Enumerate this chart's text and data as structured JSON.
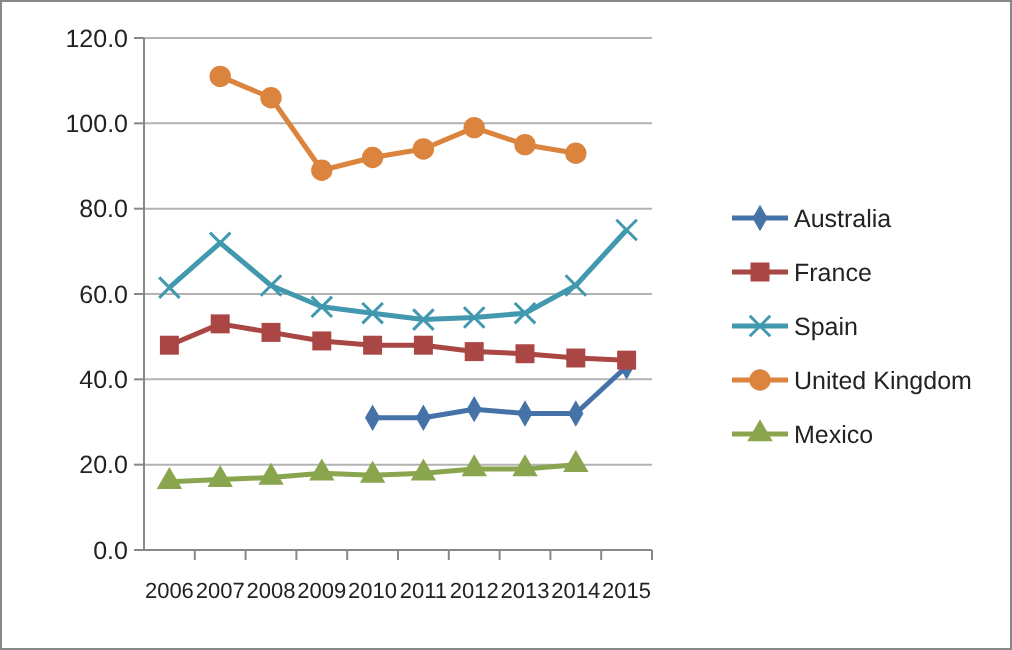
{
  "chart_data": {
    "type": "line",
    "categories": [
      "2006",
      "2007",
      "2008",
      "2009",
      "2010",
      "2011",
      "2012",
      "2013",
      "2014",
      "2015"
    ],
    "series": [
      {
        "name": "Australia",
        "color": "#4572a7",
        "marker": "diamond",
        "values": [
          null,
          null,
          null,
          null,
          31,
          31,
          33,
          32,
          32,
          43
        ]
      },
      {
        "name": "France",
        "color": "#aa4643",
        "marker": "square",
        "values": [
          48,
          53,
          51,
          49,
          48,
          48,
          46.5,
          46,
          45,
          44.5
        ]
      },
      {
        "name": "Spain",
        "color": "#4198af",
        "marker": "cross",
        "values": [
          61.5,
          72,
          62,
          57,
          55.5,
          54,
          54.5,
          55.5,
          62,
          75
        ]
      },
      {
        "name": "United Kingdom",
        "color": "#db843d",
        "marker": "circle",
        "values": [
          null,
          111,
          106,
          89,
          92,
          94,
          99,
          95,
          93,
          null
        ]
      },
      {
        "name": "Mexico",
        "color": "#89a54e",
        "marker": "triangle",
        "values": [
          16,
          16.5,
          17,
          18,
          17.5,
          18,
          19,
          19,
          20,
          null
        ]
      }
    ],
    "ylim": [
      0,
      120
    ],
    "yticks": [
      {
        "value": 0,
        "label": "0.0"
      },
      {
        "value": 20,
        "label": "20.0"
      },
      {
        "value": 40,
        "label": "40.0"
      },
      {
        "value": 60,
        "label": "60.0"
      },
      {
        "value": 80,
        "label": "80.0"
      },
      {
        "value": 100,
        "label": "100.0"
      },
      {
        "value": 120,
        "label": "120.0"
      }
    ],
    "grid": "y",
    "legend": "right"
  }
}
